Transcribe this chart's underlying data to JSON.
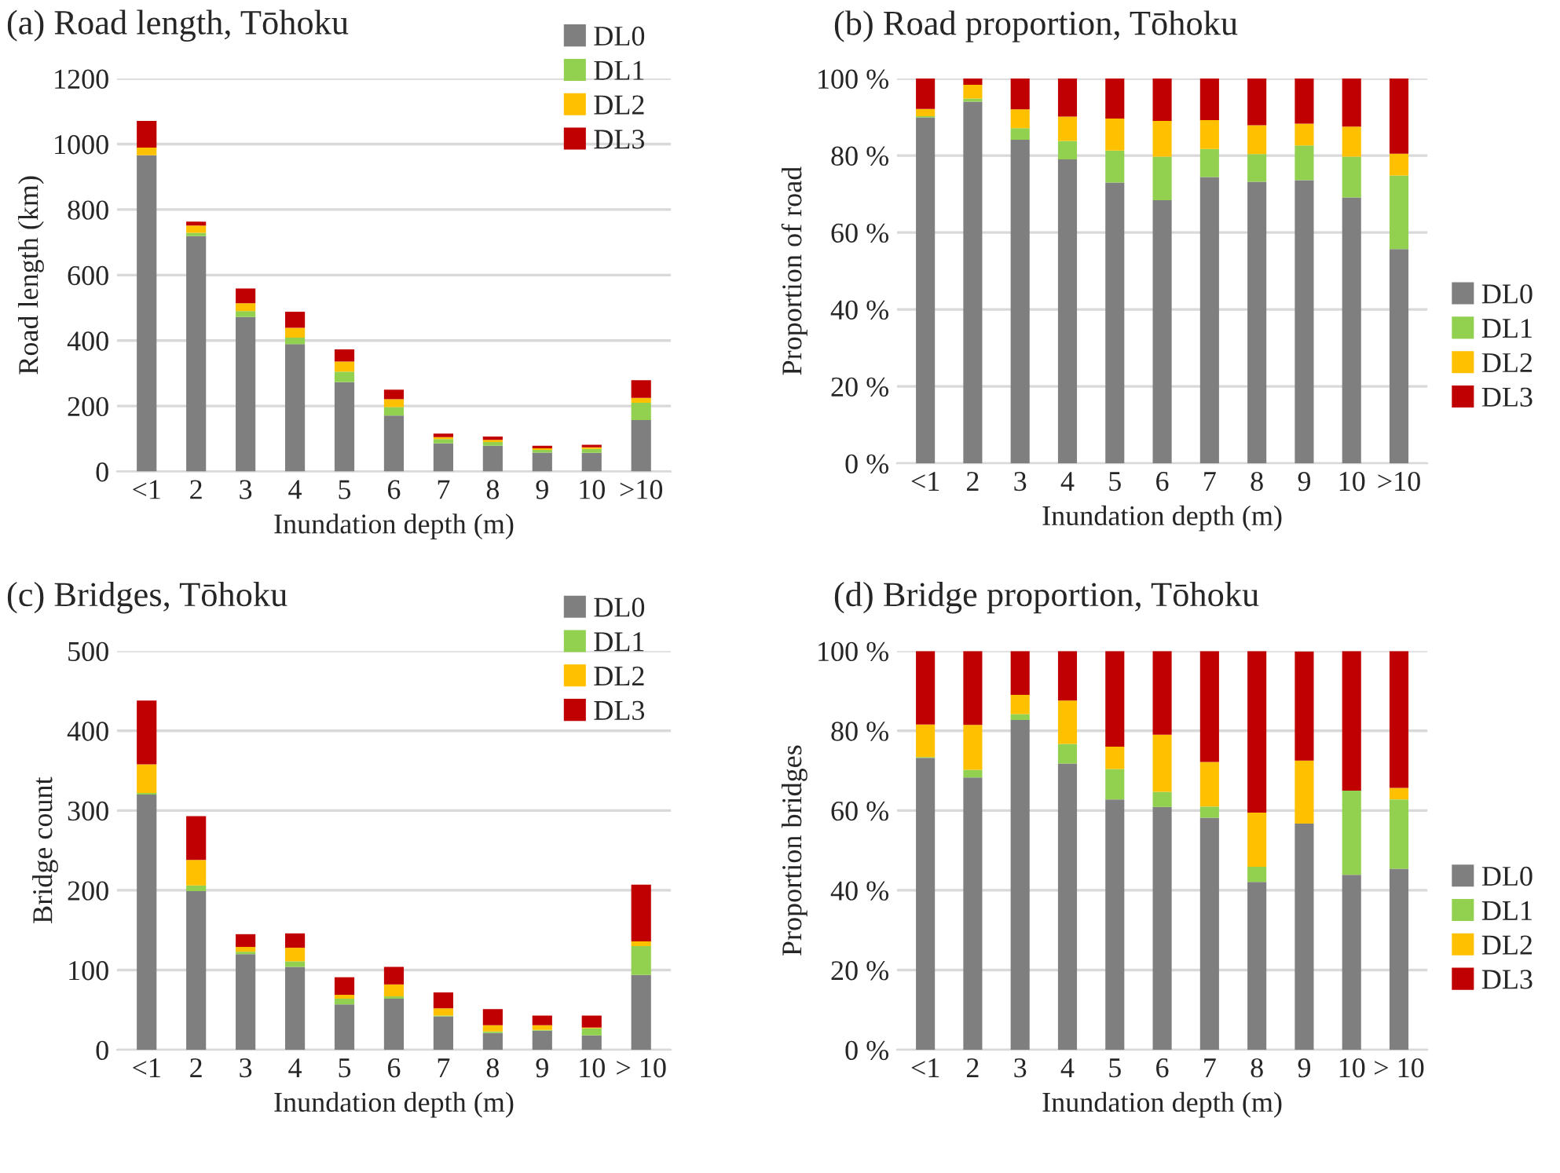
{
  "chart_data": [
    {
      "type": "bar",
      "stacked": true,
      "title": "(a) Road length, Tōhoku",
      "xlabel": "Inundation depth (m)",
      "ylabel": "Road length (km)",
      "categories": [
        "<1",
        "2",
        "3",
        "4",
        "5",
        "6",
        "7",
        "8",
        "9",
        "10",
        ">10"
      ],
      "series": [
        {
          "name": "DL0",
          "color": "#7f7f7f",
          "values": [
            966,
            719,
            472,
            389,
            273,
            171,
            86,
            79,
            58,
            57,
            157
          ]
        },
        {
          "name": "DL1",
          "color": "#92d050",
          "values": [
            0,
            10,
            18,
            20,
            32,
            26,
            13,
            11,
            8,
            12,
            53
          ]
        },
        {
          "name": "DL2",
          "color": "#ffc000",
          "values": [
            23,
            22,
            24,
            30,
            31,
            24,
            6,
            7,
            5,
            5,
            15
          ]
        },
        {
          "name": "DL3",
          "color": "#c00000",
          "values": [
            82,
            12,
            45,
            49,
            37,
            29,
            11,
            10,
            8,
            8,
            54
          ]
        }
      ],
      "ylim": [
        0,
        1200
      ],
      "yticks": [
        0,
        200,
        400,
        600,
        800,
        1000,
        1200
      ],
      "grid": "y",
      "legend": "top right"
    },
    {
      "type": "bar",
      "stacked": true,
      "title": "(b) Road proportion, Tōhoku",
      "xlabel": "Inundation depth (m)",
      "ylabel": "Proportion of road",
      "categories": [
        "<1",
        "2",
        "3",
        "4",
        "5",
        "6",
        "7",
        "8",
        "9",
        "10",
        ">10"
      ],
      "series": [
        {
          "name": "DL0",
          "color": "#7f7f7f",
          "values": [
            89.9,
            94.0,
            84.1,
            79.0,
            73.0,
            68.4,
            74.4,
            73.2,
            73.6,
            69.1,
            55.7
          ]
        },
        {
          "name": "DL1",
          "color": "#92d050",
          "values": [
            0.3,
            0.8,
            3.0,
            4.8,
            8.3,
            11.3,
            7.3,
            7.2,
            9.0,
            10.6,
            19.1
          ]
        },
        {
          "name": "DL2",
          "color": "#ffc000",
          "values": [
            1.9,
            3.6,
            4.9,
            6.3,
            8.3,
            9.3,
            7.5,
            7.5,
            5.7,
            7.8,
            5.7
          ]
        },
        {
          "name": "DL3",
          "color": "#c00000",
          "values": [
            7.9,
            1.6,
            8.0,
            9.9,
            10.4,
            11.0,
            10.8,
            12.1,
            11.7,
            12.5,
            19.5
          ]
        }
      ],
      "ylim": [
        0,
        100
      ],
      "yticks": [
        {
          "value": 0,
          "label": "0 %"
        },
        {
          "value": 20,
          "label": "20 %"
        },
        {
          "value": 40,
          "label": "40 %"
        },
        {
          "value": 60,
          "label": "60 %"
        },
        {
          "value": 80,
          "label": "80 %"
        },
        {
          "value": 100,
          "label": "100 %"
        }
      ],
      "grid": "y",
      "legend": "right"
    },
    {
      "type": "bar",
      "stacked": true,
      "title": "(c) Bridges, Tōhoku",
      "xlabel": "Inundation depth (m)",
      "ylabel": "Bridge count",
      "categories": [
        "<1",
        "2",
        "3",
        "4",
        "5",
        "6",
        "7",
        "8",
        "9",
        "10",
        "> 10"
      ],
      "series": [
        {
          "name": "DL0",
          "color": "#7f7f7f",
          "values": [
            320,
            199,
            120,
            104,
            57,
            64,
            42,
            21,
            24,
            18,
            94
          ]
        },
        {
          "name": "DL1",
          "color": "#92d050",
          "values": [
            2,
            7,
            3,
            7,
            7,
            3,
            1,
            2,
            1,
            9,
            36
          ]
        },
        {
          "name": "DL2",
          "color": "#ffc000",
          "values": [
            36,
            32,
            6,
            17,
            5,
            15,
            9,
            8,
            6,
            1,
            6
          ]
        },
        {
          "name": "DL3",
          "color": "#c00000",
          "values": [
            80,
            55,
            16,
            18,
            22,
            22,
            20,
            20,
            12,
            15,
            71
          ]
        }
      ],
      "ylim": [
        0,
        500
      ],
      "yticks": [
        0,
        100,
        200,
        300,
        400,
        500
      ],
      "grid": "y",
      "legend": "top right"
    },
    {
      "type": "bar",
      "stacked": true,
      "title": "(d) Bridge proportion, Tōhoku",
      "xlabel": "Inundation depth (m)",
      "ylabel": "Proportion bridges",
      "categories": [
        "<1",
        "2",
        "3",
        "4",
        "5",
        "6",
        "7",
        "8",
        "9",
        "10",
        "> 10"
      ],
      "series": [
        {
          "name": "DL0",
          "color": "#7f7f7f",
          "values": [
            73.2,
            68.3,
            82.7,
            71.8,
            62.8,
            60.9,
            58.2,
            42.1,
            56.7,
            43.9,
            45.4
          ]
        },
        {
          "name": "DL1",
          "color": "#92d050",
          "values": [
            0.2,
            1.9,
            1.5,
            4.9,
            7.6,
            3.8,
            2.8,
            3.8,
            0,
            21.1,
            17.4
          ]
        },
        {
          "name": "DL2",
          "color": "#ffc000",
          "values": [
            8.2,
            11.3,
            4.8,
            10.9,
            5.6,
            14.3,
            11.2,
            13.6,
            15.8,
            0,
            2.9
          ]
        },
        {
          "name": "DL3",
          "color": "#c00000",
          "values": [
            18.4,
            18.5,
            11.0,
            12.4,
            24.0,
            21.0,
            27.8,
            40.5,
            27.4,
            35.0,
            34.3
          ]
        }
      ],
      "ylim": [
        0,
        100
      ],
      "yticks": [
        {
          "value": 0,
          "label": "0 %"
        },
        {
          "value": 20,
          "label": "20 %"
        },
        {
          "value": 40,
          "label": "40 %"
        },
        {
          "value": 60,
          "label": "60 %"
        },
        {
          "value": 80,
          "label": "80 %"
        },
        {
          "value": 100,
          "label": "100 %"
        }
      ],
      "grid": "y",
      "legend": "right"
    }
  ]
}
